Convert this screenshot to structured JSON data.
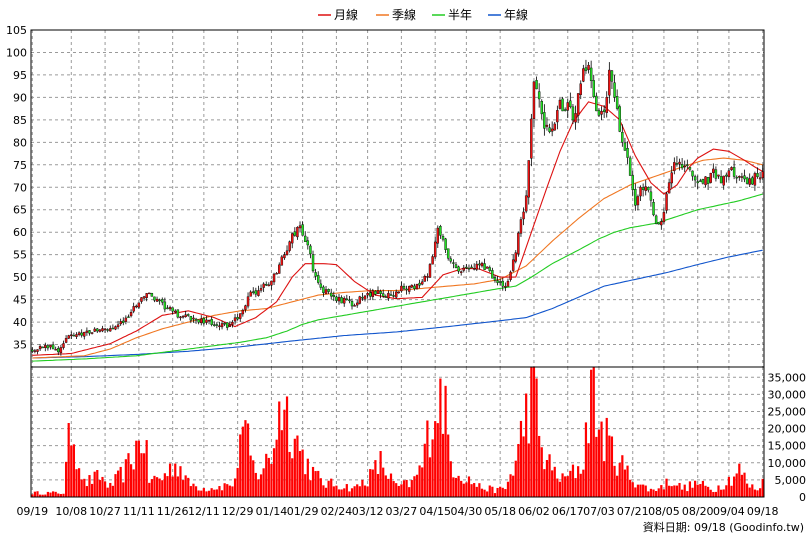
{
  "chart_data": {
    "type": "candlestick",
    "legend": [
      {
        "name": "月線",
        "color": "#dd1111"
      },
      {
        "name": "季線",
        "color": "#f07722"
      },
      {
        "name": "半年",
        "color": "#22cc22"
      },
      {
        "name": "年線",
        "color": "#1155cc"
      }
    ],
    "price_axis": {
      "min": 30,
      "max": 105,
      "ticks": [
        35,
        40,
        45,
        50,
        55,
        60,
        65,
        70,
        75,
        80,
        85,
        90,
        95,
        100,
        105
      ]
    },
    "volume_axis": {
      "min": 0,
      "max": 38000,
      "ticks": [
        0,
        5000,
        10000,
        15000,
        20000,
        25000,
        30000,
        35000
      ],
      "tick_labels": [
        "0",
        "5,000",
        "10,000",
        "15,000",
        "20,000",
        "25,000",
        "30,000",
        "35,000"
      ]
    },
    "x_labels": [
      {
        "label": "09/19",
        "day": 0
      },
      {
        "label": "10/08",
        "day": 15
      },
      {
        "label": "10/27",
        "day": 28
      },
      {
        "label": "11/11",
        "day": 41
      },
      {
        "label": "11/26",
        "day": 54
      },
      {
        "label": "12/11",
        "day": 66
      },
      {
        "label": "12/29",
        "day": 79
      },
      {
        "label": "01/14",
        "day": 92
      },
      {
        "label": "01/29",
        "day": 104
      },
      {
        "label": "02/24",
        "day": 117
      },
      {
        "label": "03/12",
        "day": 129
      },
      {
        "label": "03/27",
        "day": 142
      },
      {
        "label": "04/15",
        "day": 155
      },
      {
        "label": "04/30",
        "day": 167
      },
      {
        "label": "05/18",
        "day": 180
      },
      {
        "label": "06/02",
        "day": 193
      },
      {
        "label": "06/17",
        "day": 206
      },
      {
        "label": "07/03",
        "day": 218
      },
      {
        "label": "07/21",
        "day": 231
      },
      {
        "label": "08/05",
        "day": 243
      },
      {
        "label": "08/20",
        "day": 256
      },
      {
        "label": "09/04",
        "day": 268
      },
      {
        "label": "09/18",
        "day": 281
      }
    ],
    "ohlc_anchors": [
      [
        0,
        34.0
      ],
      [
        5,
        34.6
      ],
      [
        10,
        33.8
      ],
      [
        14,
        36.8
      ],
      [
        18,
        37.5
      ],
      [
        24,
        38.0
      ],
      [
        30,
        38.5
      ],
      [
        36,
        40.5
      ],
      [
        40,
        44.0
      ],
      [
        44,
        46.5
      ],
      [
        48,
        44.5
      ],
      [
        52,
        43.0
      ],
      [
        56,
        41.5
      ],
      [
        60,
        41.0
      ],
      [
        66,
        40.0
      ],
      [
        72,
        39.5
      ],
      [
        76,
        38.8
      ],
      [
        80,
        42.0
      ],
      [
        84,
        46.0
      ],
      [
        88,
        47.5
      ],
      [
        92,
        49.0
      ],
      [
        96,
        54.0
      ],
      [
        100,
        59.0
      ],
      [
        103,
        61.5
      ],
      [
        106,
        57.0
      ],
      [
        108,
        52.0
      ],
      [
        112,
        47.0
      ],
      [
        116,
        45.5
      ],
      [
        120,
        44.8
      ],
      [
        124,
        43.5
      ],
      [
        126,
        45.0
      ],
      [
        130,
        46.5
      ],
      [
        134,
        46.2
      ],
      [
        138,
        46.0
      ],
      [
        142,
        47.5
      ],
      [
        146,
        47.5
      ],
      [
        150,
        48.5
      ],
      [
        153,
        52.0
      ],
      [
        156,
        60.0
      ],
      [
        158,
        58.0
      ],
      [
        161,
        53.0
      ],
      [
        164,
        51.0
      ],
      [
        168,
        52.5
      ],
      [
        172,
        53.0
      ],
      [
        176,
        51.5
      ],
      [
        179,
        48.5
      ],
      [
        182,
        48.0
      ],
      [
        185,
        53.0
      ],
      [
        188,
        62.0
      ],
      [
        190,
        67.0
      ],
      [
        191,
        75.0
      ],
      [
        192,
        84.0
      ],
      [
        193,
        93.0
      ],
      [
        195,
        90.0
      ],
      [
        197,
        82.0
      ],
      [
        200,
        84.0
      ],
      [
        203,
        88.0
      ],
      [
        206,
        89.0
      ],
      [
        208,
        84.0
      ],
      [
        210,
        90.0
      ],
      [
        212,
        95.0
      ],
      [
        214,
        96.0
      ],
      [
        216,
        89.0
      ],
      [
        218,
        85.0
      ],
      [
        220,
        86.0
      ],
      [
        222,
        95.0
      ],
      [
        224,
        90.0
      ],
      [
        226,
        83.0
      ],
      [
        228,
        78.0
      ],
      [
        230,
        73.0
      ],
      [
        232,
        67.0
      ],
      [
        234,
        69.0
      ],
      [
        236,
        71.0
      ],
      [
        238,
        66.0
      ],
      [
        240,
        61.0
      ],
      [
        242,
        63.0
      ],
      [
        244,
        68.0
      ],
      [
        246,
        74.0
      ],
      [
        248,
        76.0
      ],
      [
        250,
        75.0
      ],
      [
        252,
        74.5
      ],
      [
        254,
        72.5
      ],
      [
        256,
        71.0
      ],
      [
        258,
        70.5
      ],
      [
        260,
        72.0
      ],
      [
        262,
        73.5
      ],
      [
        264,
        72.5
      ],
      [
        266,
        71.5
      ],
      [
        268,
        74.0
      ],
      [
        270,
        73.0
      ],
      [
        272,
        72.0
      ],
      [
        274,
        71.5
      ],
      [
        276,
        71.0
      ],
      [
        278,
        72.5
      ],
      [
        280,
        73.0
      ],
      [
        281,
        74.5
      ]
    ],
    "ma_month": [
      [
        0,
        32.6
      ],
      [
        15,
        33.0
      ],
      [
        30,
        35.2
      ],
      [
        40,
        38.0
      ],
      [
        50,
        41.5
      ],
      [
        60,
        42.5
      ],
      [
        70,
        41.0
      ],
      [
        78,
        39.0
      ],
      [
        86,
        41.0
      ],
      [
        94,
        44.5
      ],
      [
        100,
        50.0
      ],
      [
        105,
        53.0
      ],
      [
        112,
        53.0
      ],
      [
        117,
        52.8
      ],
      [
        124,
        49.0
      ],
      [
        132,
        46.0
      ],
      [
        140,
        45.2
      ],
      [
        150,
        45.5
      ],
      [
        158,
        50.5
      ],
      [
        166,
        52.0
      ],
      [
        172,
        51.8
      ],
      [
        180,
        50.0
      ],
      [
        186,
        50.0
      ],
      [
        192,
        60.0
      ],
      [
        198,
        70.0
      ],
      [
        203,
        78.0
      ],
      [
        208,
        84.5
      ],
      [
        214,
        89.0
      ],
      [
        220,
        88.0
      ],
      [
        226,
        85.0
      ],
      [
        232,
        77.0
      ],
      [
        238,
        71.0
      ],
      [
        243,
        68.5
      ],
      [
        248,
        70.5
      ],
      [
        252,
        74.0
      ],
      [
        256,
        76.5
      ],
      [
        262,
        78.5
      ],
      [
        268,
        78.0
      ],
      [
        274,
        76.0
      ],
      [
        278,
        74.5
      ],
      [
        281,
        73.5
      ]
    ],
    "ma_quarter": [
      [
        0,
        32.0
      ],
      [
        20,
        32.5
      ],
      [
        30,
        34.0
      ],
      [
        40,
        36.5
      ],
      [
        50,
        38.5
      ],
      [
        60,
        40.0
      ],
      [
        70,
        41.5
      ],
      [
        80,
        42.5
      ],
      [
        90,
        43.0
      ],
      [
        100,
        44.5
      ],
      [
        110,
        46.0
      ],
      [
        120,
        46.6
      ],
      [
        130,
        47.0
      ],
      [
        140,
        47.0
      ],
      [
        150,
        47.5
      ],
      [
        160,
        48.0
      ],
      [
        170,
        48.5
      ],
      [
        180,
        49.5
      ],
      [
        190,
        52.5
      ],
      [
        200,
        58.0
      ],
      [
        210,
        63.0
      ],
      [
        220,
        67.5
      ],
      [
        230,
        70.5
      ],
      [
        240,
        72.5
      ],
      [
        250,
        74.5
      ],
      [
        258,
        76.0
      ],
      [
        266,
        76.5
      ],
      [
        274,
        76.0
      ],
      [
        281,
        75.0
      ]
    ],
    "ma_half": [
      [
        0,
        31.3
      ],
      [
        20,
        31.8
      ],
      [
        40,
        32.5
      ],
      [
        60,
        34.0
      ],
      [
        80,
        35.5
      ],
      [
        90,
        36.5
      ],
      [
        98,
        38.0
      ],
      [
        104,
        39.5
      ],
      [
        110,
        40.5
      ],
      [
        120,
        41.5
      ],
      [
        130,
        42.5
      ],
      [
        140,
        43.5
      ],
      [
        150,
        44.5
      ],
      [
        160,
        45.5
      ],
      [
        170,
        46.5
      ],
      [
        180,
        47.5
      ],
      [
        186,
        48.0
      ],
      [
        192,
        50.0
      ],
      [
        200,
        53.0
      ],
      [
        210,
        56.0
      ],
      [
        218,
        58.5
      ],
      [
        224,
        60.0
      ],
      [
        230,
        61.0
      ],
      [
        240,
        62.0
      ],
      [
        248,
        63.5
      ],
      [
        256,
        65.0
      ],
      [
        264,
        66.0
      ],
      [
        272,
        67.0
      ],
      [
        281,
        68.5
      ]
    ],
    "ma_year": [
      [
        0,
        32.0
      ],
      [
        20,
        32.3
      ],
      [
        40,
        32.8
      ],
      [
        60,
        33.5
      ],
      [
        80,
        34.5
      ],
      [
        100,
        35.8
      ],
      [
        120,
        37.0
      ],
      [
        140,
        37.8
      ],
      [
        160,
        39.0
      ],
      [
        180,
        40.3
      ],
      [
        190,
        41.0
      ],
      [
        200,
        43.0
      ],
      [
        210,
        45.5
      ],
      [
        220,
        48.0
      ],
      [
        232,
        49.5
      ],
      [
        244,
        51.0
      ],
      [
        256,
        52.8
      ],
      [
        268,
        54.5
      ],
      [
        281,
        56.0
      ]
    ],
    "volume_anchors": [
      [
        0,
        1200
      ],
      [
        12,
        1200
      ],
      [
        15,
        22000
      ],
      [
        17,
        14000
      ],
      [
        20,
        4000
      ],
      [
        26,
        6000
      ],
      [
        30,
        3000
      ],
      [
        36,
        8000
      ],
      [
        40,
        14000
      ],
      [
        43,
        18000
      ],
      [
        45,
        5000
      ],
      [
        50,
        5500
      ],
      [
        54,
        9000
      ],
      [
        56,
        10000
      ],
      [
        60,
        4000
      ],
      [
        66,
        2500
      ],
      [
        72,
        3000
      ],
      [
        78,
        4000
      ],
      [
        80,
        20000
      ],
      [
        83,
        15000
      ],
      [
        86,
        6000
      ],
      [
        92,
        12000
      ],
      [
        96,
        29000
      ],
      [
        100,
        20000
      ],
      [
        104,
        12000
      ],
      [
        108,
        7000
      ],
      [
        112,
        4000
      ],
      [
        118,
        3500
      ],
      [
        124,
        2500
      ],
      [
        130,
        6000
      ],
      [
        134,
        10000
      ],
      [
        140,
        3000
      ],
      [
        146,
        4000
      ],
      [
        150,
        9000
      ],
      [
        154,
        25000
      ],
      [
        158,
        30000
      ],
      [
        161,
        10000
      ],
      [
        166,
        6000
      ],
      [
        172,
        3000
      ],
      [
        178,
        2000
      ],
      [
        182,
        2500
      ],
      [
        186,
        10000
      ],
      [
        190,
        25000
      ],
      [
        193,
        32000
      ],
      [
        196,
        13000
      ],
      [
        200,
        8000
      ],
      [
        204,
        5000
      ],
      [
        208,
        7000
      ],
      [
        212,
        10000
      ],
      [
        215,
        34000
      ],
      [
        218,
        20000
      ],
      [
        222,
        15000
      ],
      [
        226,
        10000
      ],
      [
        230,
        6000
      ],
      [
        234,
        3500
      ],
      [
        238,
        2000
      ],
      [
        242,
        3000
      ],
      [
        246,
        5000
      ],
      [
        250,
        2500
      ],
      [
        256,
        4000
      ],
      [
        262,
        2000
      ],
      [
        268,
        5000
      ],
      [
        272,
        8000
      ],
      [
        276,
        3000
      ],
      [
        280,
        2500
      ],
      [
        281,
        4500
      ]
    ],
    "footer": "資料日期: 09/18  (Goodinfo.tw)"
  }
}
